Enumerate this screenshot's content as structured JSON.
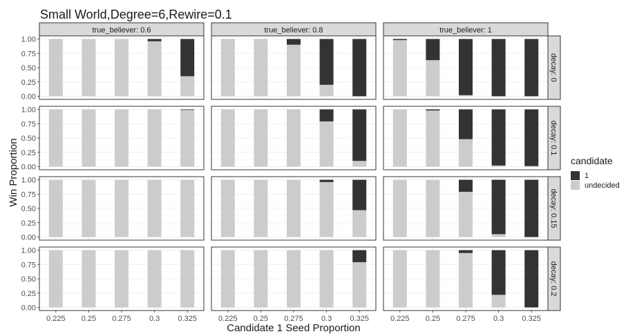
{
  "chart_data": {
    "type": "bar",
    "stacked": true,
    "title": "Small World,Degree=6,Rewire=0.1",
    "xlabel": "Candidate 1 Seed Proportion",
    "ylabel": "Win Proportion",
    "categories": [
      "0.225",
      "0.25",
      "0.275",
      "0.3",
      "0.325"
    ],
    "y_ticks": [
      "0.00",
      "0.25",
      "0.50",
      "0.75",
      "1.00"
    ],
    "ylim": [
      0,
      1
    ],
    "grid": true,
    "facet_cols": [
      "true_believer: 0.6",
      "true_believer: 0.8",
      "true_believer: 1"
    ],
    "facet_rows": [
      "decay: 0",
      "decay: 0.1",
      "decay: 0.15",
      "decay: 0.2"
    ],
    "legend": {
      "title": "candidate",
      "position": "right",
      "entries": [
        {
          "label": "1",
          "color": "#333333"
        },
        {
          "label": "undecided",
          "color": "#cccccc"
        }
      ]
    },
    "series_note_undecided_values": "undecided share per bar; 1 share = 1 - undecided",
    "undecided": [
      [
        [
          1.0,
          1.0,
          1.0,
          0.96,
          0.35
        ],
        [
          1.0,
          1.0,
          0.9,
          0.2,
          0.0
        ],
        [
          0.98,
          0.63,
          0.02,
          0.0,
          0.0
        ]
      ],
      [
        [
          1.0,
          1.0,
          1.0,
          1.0,
          0.99
        ],
        [
          1.0,
          1.0,
          1.0,
          0.79,
          0.1
        ],
        [
          1.0,
          0.98,
          0.48,
          0.02,
          0.01
        ]
      ],
      [
        [
          1.0,
          1.0,
          1.0,
          1.0,
          1.0
        ],
        [
          1.0,
          1.0,
          1.0,
          0.96,
          0.47
        ],
        [
          1.0,
          1.0,
          0.79,
          0.05,
          0.0
        ]
      ],
      [
        [
          1.0,
          1.0,
          1.0,
          1.0,
          1.0
        ],
        [
          1.0,
          1.0,
          1.0,
          1.0,
          0.79
        ],
        [
          1.0,
          1.0,
          0.95,
          0.22,
          0.0
        ]
      ]
    ]
  }
}
